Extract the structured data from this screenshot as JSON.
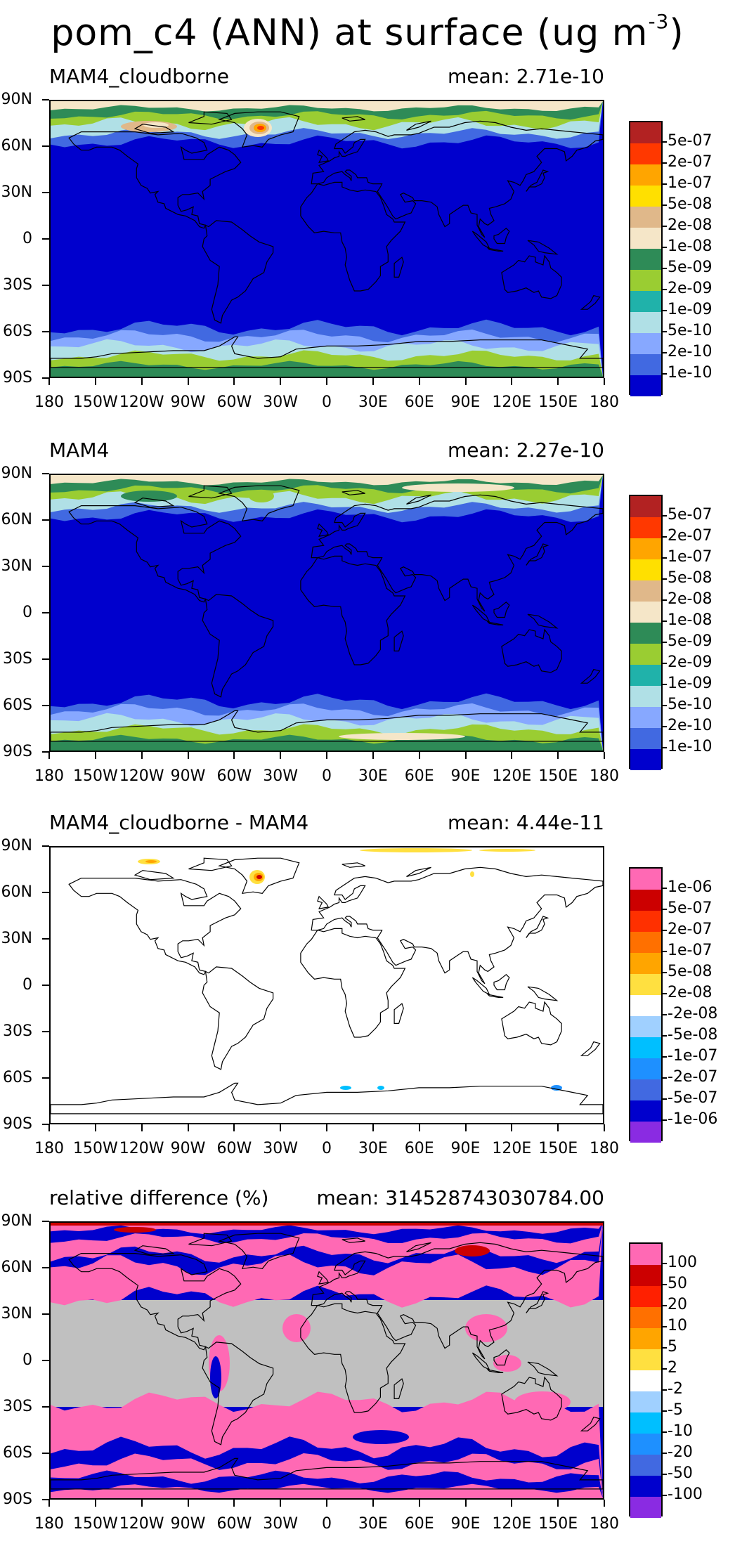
{
  "title": {
    "text": "pom_c4 (ANN) at surface (ug m",
    "exp": "-3",
    "close": ")"
  },
  "lat_labels": [
    "90N",
    "60N",
    "30N",
    "0",
    "30S",
    "60S",
    "90S"
  ],
  "lon_labels": [
    "180",
    "150W",
    "120W",
    "90W",
    "60W",
    "30W",
    "0",
    "30E",
    "60E",
    "90E",
    "120E",
    "150E",
    "180"
  ],
  "panels": [
    {
      "name": "MAM4_cloudborne",
      "mean": "mean: 2.71e-10",
      "colorbar": {
        "labels": [
          "5e-07",
          "2e-07",
          "1e-07",
          "5e-08",
          "2e-08",
          "1e-08",
          "5e-09",
          "2e-09",
          "1e-09",
          "5e-10",
          "2e-10",
          "1e-10"
        ],
        "colors": [
          "#b22222",
          "#ff3800",
          "#ffa500",
          "#ffe000",
          "#e0b88a",
          "#f5e6c8",
          "#2e8b57",
          "#9acd32",
          "#20b2aa",
          "#b0e0e6",
          "#87a8ff",
          "#4169e1",
          "#0000cd"
        ]
      }
    },
    {
      "name": "MAM4",
      "mean": "mean: 2.27e-10",
      "colorbar": {
        "labels": [
          "5e-07",
          "2e-07",
          "1e-07",
          "5e-08",
          "2e-08",
          "1e-08",
          "5e-09",
          "2e-09",
          "1e-09",
          "5e-10",
          "2e-10",
          "1e-10"
        ],
        "colors": [
          "#b22222",
          "#ff3800",
          "#ffa500",
          "#ffe000",
          "#e0b88a",
          "#f5e6c8",
          "#2e8b57",
          "#9acd32",
          "#20b2aa",
          "#b0e0e6",
          "#87a8ff",
          "#4169e1",
          "#0000cd"
        ]
      }
    },
    {
      "name": "MAM4_cloudborne - MAM4",
      "mean": "mean: 4.44e-11",
      "colorbar": {
        "labels": [
          "1e-06",
          "5e-07",
          "2e-07",
          "1e-07",
          "5e-08",
          "2e-08",
          "-2e-08",
          "-5e-08",
          "-1e-07",
          "-2e-07",
          "-5e-07",
          "-1e-06"
        ],
        "colors": [
          "#ff69b4",
          "#cc0000",
          "#ff3000",
          "#ff7000",
          "#ffa500",
          "#ffe040",
          "#ffffff",
          "#a0d0ff",
          "#00bfff",
          "#1e90ff",
          "#4169e1",
          "#0000cd",
          "#8a2be2"
        ]
      }
    },
    {
      "name": "relative difference (%)",
      "mean": "mean: 314528743030784.00",
      "colorbar": {
        "labels": [
          "100",
          "50",
          "20",
          "10",
          "5",
          "2",
          "-2",
          "-5",
          "-10",
          "-20",
          "-50",
          "-100"
        ],
        "colors": [
          "#ff69b4",
          "#cc0000",
          "#ff2000",
          "#ff7000",
          "#ffa500",
          "#ffe040",
          "#ffffff",
          "#a0d0ff",
          "#00bfff",
          "#1e90ff",
          "#4169e1",
          "#0000cd",
          "#8a2be2"
        ]
      }
    }
  ]
}
